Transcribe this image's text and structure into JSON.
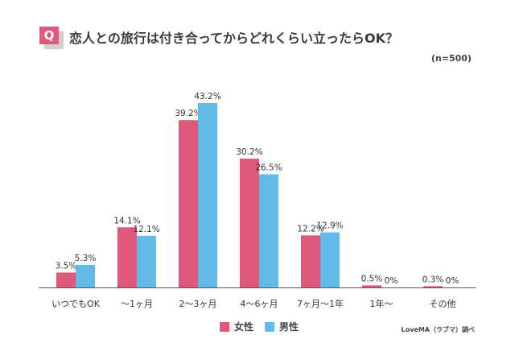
{
  "question": {
    "badge": "Q",
    "title": "恋人との旅行は付き合ってからどれくらい立ったらOK？",
    "sample_size": "(n=500)"
  },
  "legend": {
    "female": "女性",
    "male": "男性"
  },
  "source": "LoveMA（ラブマ）調べ",
  "colors": {
    "female": "#e0587a",
    "male": "#62bae6",
    "baseline": "#555555",
    "badge": "#e0587a"
  },
  "chart_data": {
    "type": "bar",
    "categories": [
      "いつでもOK",
      "〜1ヶ月",
      "2〜3ヶ月",
      "4〜6ヶ月",
      "7ヶ月〜1年",
      "1年〜",
      "その他"
    ],
    "series": [
      {
        "name": "女性",
        "values": [
          3.5,
          14.1,
          39.2,
          30.2,
          12.2,
          0.5,
          0.3
        ],
        "labels": [
          "3.5%",
          "14.1%",
          "39.2%",
          "30.2%",
          "12.2%",
          "0.5%",
          "0.3%"
        ]
      },
      {
        "name": "男性",
        "values": [
          5.3,
          12.1,
          43.2,
          26.5,
          12.9,
          0,
          0
        ],
        "labels": [
          "5.3%",
          "12.1%",
          "43.2%",
          "26.5%",
          "12.9%",
          "0%",
          "0%"
        ]
      }
    ],
    "ylim": [
      0,
      43.2
    ]
  }
}
